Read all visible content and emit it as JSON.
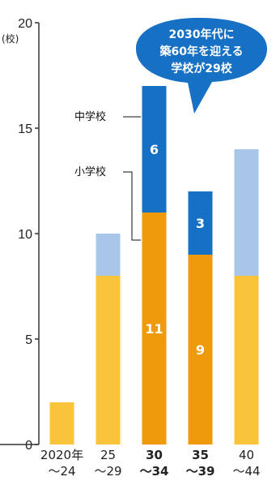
{
  "chart_data": {
    "type": "bar",
    "stacked": true,
    "y_unit": "(校)",
    "ylim": [
      0,
      20
    ],
    "yticks": [
      "0",
      "5",
      "10",
      "15",
      "20"
    ],
    "categories": [
      {
        "line1": "2020年",
        "line2": "～24",
        "highlight": false
      },
      {
        "line1": "25",
        "line2": "～29",
        "highlight": false
      },
      {
        "line1": "30",
        "line2": "～34",
        "highlight": true
      },
      {
        "line1": "35",
        "line2": "～39",
        "highlight": true
      },
      {
        "line1": "40",
        "line2": "～44",
        "highlight": false
      }
    ],
    "series": [
      {
        "name": "小学校",
        "values": [
          2,
          8,
          11,
          9,
          8
        ],
        "data_labels": [
          "",
          "",
          "11",
          "9",
          ""
        ]
      },
      {
        "name": "中学校",
        "values": [
          0,
          2,
          6,
          3,
          6
        ],
        "data_labels": [
          "",
          "",
          "6",
          "3",
          ""
        ]
      }
    ],
    "annotation": {
      "lines": [
        "2030年代に",
        "築60年を迎える",
        "学校が29校"
      ]
    },
    "colors": {
      "elementary_normal": "#F9C43A",
      "elementary_highlight": "#EE9A0C",
      "junior_normal": "#A8C6E8",
      "junior_highlight": "#1670C4",
      "bubble": "#1670C4",
      "axis": "#333333"
    }
  }
}
